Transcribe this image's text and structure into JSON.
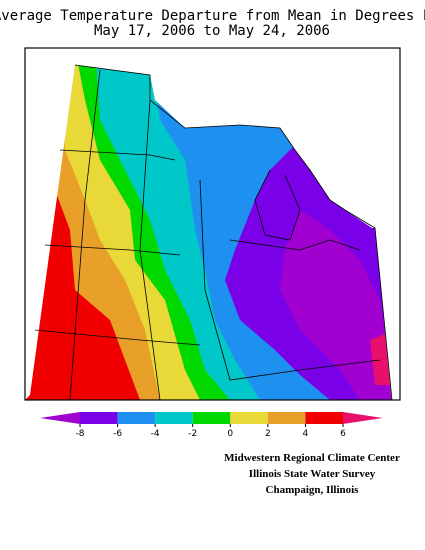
{
  "title": [
    "Average Temperature Departure from Mean in Degrees F",
    "May 17, 2006 to May 24, 2006"
  ],
  "legend": {
    "ticks": [
      -8,
      -6,
      -4,
      -2,
      0,
      2,
      4,
      6
    ],
    "colors": [
      "#a000d0",
      "#7a00e8",
      "#1e90f0",
      "#00c8c8",
      "#00d800",
      "#e8d838",
      "#e8a028",
      "#f00000",
      "#e8106c"
    ]
  },
  "credits": [
    "Midwestern Regional Climate Center",
    "Illinois State Water Survey",
    "Champaign, Illinois"
  ]
}
